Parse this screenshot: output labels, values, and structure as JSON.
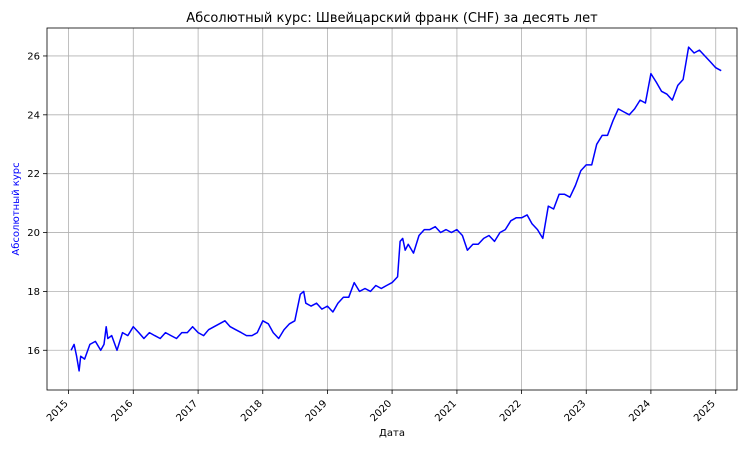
{
  "chart_data": {
    "type": "line",
    "title": "Абсолютный курс: Швейцарский франк (CHF) за десять лет",
    "xlabel": "Дата",
    "ylabel": "Абсолютный курс",
    "x_ticks": [
      "2015",
      "2016",
      "2017",
      "2018",
      "2019",
      "2020",
      "2021",
      "2022",
      "2023",
      "2024",
      "2025"
    ],
    "y_ticks": [
      16,
      18,
      20,
      22,
      24,
      26
    ],
    "xlim": [
      "2014-09-01",
      "2025-05-01"
    ],
    "ylim": [
      14.65,
      26.95
    ],
    "grid": true,
    "colors": {
      "line": "#0000ff",
      "ylabel": "#0000ff",
      "grid": "#b0b0b0"
    },
    "series": [
      {
        "x": [
          "2015-01-15",
          "2015-02-01",
          "2015-02-15",
          "2015-03-01",
          "2015-03-10",
          "2015-04-01",
          "2015-05-01",
          "2015-06-01",
          "2015-07-01",
          "2015-07-20",
          "2015-08-01",
          "2015-08-10",
          "2015-09-01",
          "2015-10-01",
          "2015-11-01",
          "2015-12-01",
          "2016-01-01",
          "2016-02-01",
          "2016-03-01",
          "2016-04-01",
          "2016-05-01",
          "2016-06-01",
          "2016-07-01",
          "2016-08-01",
          "2016-09-01",
          "2016-10-01",
          "2016-11-01",
          "2016-12-01",
          "2017-01-01",
          "2017-02-01",
          "2017-03-01",
          "2017-04-01",
          "2017-05-01",
          "2017-06-01",
          "2017-07-01",
          "2017-08-01",
          "2017-09-01",
          "2017-10-01",
          "2017-11-01",
          "2017-12-01",
          "2018-01-01",
          "2018-02-01",
          "2018-03-01",
          "2018-04-01",
          "2018-05-01",
          "2018-06-01",
          "2018-07-01",
          "2018-08-01",
          "2018-08-20",
          "2018-09-01",
          "2018-10-01",
          "2018-11-01",
          "2018-12-01",
          "2019-01-01",
          "2019-02-01",
          "2019-03-01",
          "2019-04-01",
          "2019-05-01",
          "2019-06-01",
          "2019-07-01",
          "2019-08-01",
          "2019-09-01",
          "2019-10-01",
          "2019-11-01",
          "2019-12-01",
          "2020-01-01",
          "2020-02-01",
          "2020-02-15",
          "2020-03-01",
          "2020-03-15",
          "2020-04-01",
          "2020-05-01",
          "2020-06-01",
          "2020-07-01",
          "2020-08-01",
          "2020-09-01",
          "2020-10-01",
          "2020-11-01",
          "2020-12-01",
          "2021-01-01",
          "2021-02-01",
          "2021-03-01",
          "2021-04-01",
          "2021-05-01",
          "2021-06-01",
          "2021-07-01",
          "2021-08-01",
          "2021-09-01",
          "2021-10-01",
          "2021-11-01",
          "2021-12-01",
          "2022-01-01",
          "2022-02-01",
          "2022-03-01",
          "2022-04-01",
          "2022-05-01",
          "2022-06-01",
          "2022-07-01",
          "2022-08-01",
          "2022-09-01",
          "2022-10-01",
          "2022-11-01",
          "2022-12-01",
          "2023-01-01",
          "2023-02-01",
          "2023-03-01",
          "2023-04-01",
          "2023-05-01",
          "2023-06-01",
          "2023-07-01",
          "2023-08-01",
          "2023-09-01",
          "2023-10-01",
          "2023-11-01",
          "2023-12-01",
          "2024-01-01",
          "2024-02-01",
          "2024-03-01",
          "2024-04-01",
          "2024-05-01",
          "2024-06-01",
          "2024-07-01",
          "2024-08-01",
          "2024-09-01",
          "2024-10-01",
          "2024-11-01",
          "2024-12-01",
          "2025-01-01",
          "2025-02-01"
        ],
        "y": [
          16.0,
          16.2,
          15.8,
          15.3,
          15.8,
          15.7,
          16.2,
          16.3,
          16.0,
          16.2,
          16.8,
          16.4,
          16.5,
          16.0,
          16.6,
          16.5,
          16.8,
          16.6,
          16.4,
          16.6,
          16.5,
          16.4,
          16.6,
          16.5,
          16.4,
          16.6,
          16.6,
          16.8,
          16.6,
          16.5,
          16.7,
          16.8,
          16.9,
          17.0,
          16.8,
          16.7,
          16.6,
          16.5,
          16.5,
          16.6,
          17.0,
          16.9,
          16.6,
          16.4,
          16.7,
          16.9,
          17.0,
          17.9,
          18.0,
          17.6,
          17.5,
          17.6,
          17.4,
          17.5,
          17.3,
          17.6,
          17.8,
          17.8,
          18.3,
          18.0,
          18.1,
          18.0,
          18.2,
          18.1,
          18.2,
          18.3,
          18.5,
          19.7,
          19.8,
          19.4,
          19.6,
          19.3,
          19.9,
          20.1,
          20.1,
          20.2,
          20.0,
          20.1,
          20.0,
          20.1,
          19.9,
          19.4,
          19.6,
          19.6,
          19.8,
          19.9,
          19.7,
          20.0,
          20.1,
          20.4,
          20.5,
          20.5,
          20.6,
          20.3,
          20.1,
          19.8,
          20.9,
          20.8,
          21.3,
          21.3,
          21.2,
          21.6,
          22.1,
          22.3,
          22.3,
          23.0,
          23.3,
          23.3,
          23.8,
          24.2,
          24.1,
          24.0,
          24.2,
          24.5,
          24.4,
          25.4,
          25.1,
          24.8,
          24.7,
          24.5,
          25.0,
          25.2,
          26.3,
          26.1,
          26.2,
          26.0,
          25.8,
          25.6,
          25.5
        ]
      }
    ]
  }
}
